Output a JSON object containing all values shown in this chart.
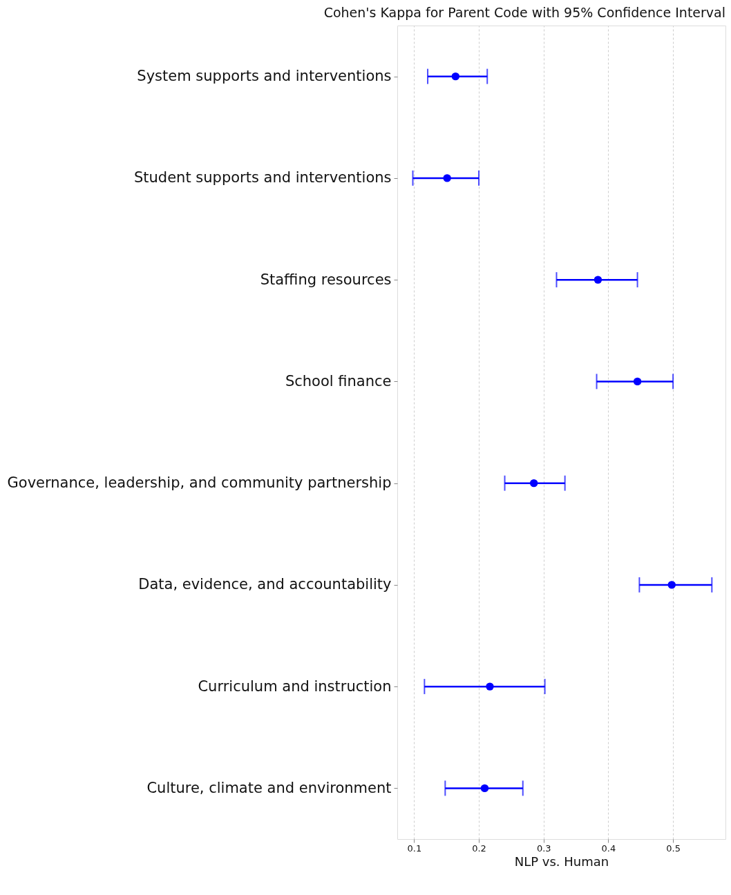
{
  "chart_data": {
    "type": "scatter",
    "title": "Cohen's Kappa for Parent Code with 95% Confidence Interval",
    "xlabel": "NLP vs. Human",
    "orientation": "horizontal",
    "categories": [
      "System supports and interventions",
      "Student supports and interventions",
      "Staffing resources",
      "School finance",
      "Governance, leadership, and community partnership",
      "Data, evidence, and accountability",
      "Curriculum and instruction",
      "Culture, climate and environment"
    ],
    "series": [
      {
        "color": "#0000ff",
        "values": [
          0.164,
          0.151,
          0.384,
          0.445,
          0.285,
          0.498,
          0.217,
          0.209
        ],
        "errors": [
          [
            0.121,
            0.213
          ],
          [
            0.098,
            0.2
          ],
          [
            0.32,
            0.445
          ],
          [
            0.382,
            0.5
          ],
          [
            0.24,
            0.333
          ],
          [
            0.448,
            0.56
          ],
          [
            0.116,
            0.302
          ],
          [
            0.148,
            0.268
          ]
        ]
      }
    ],
    "xlim": [
      0.074,
      0.581
    ],
    "xticks": [
      0.1,
      0.2,
      0.3,
      0.4,
      0.5
    ],
    "grid": "x",
    "marker": "circle",
    "legend": false
  }
}
